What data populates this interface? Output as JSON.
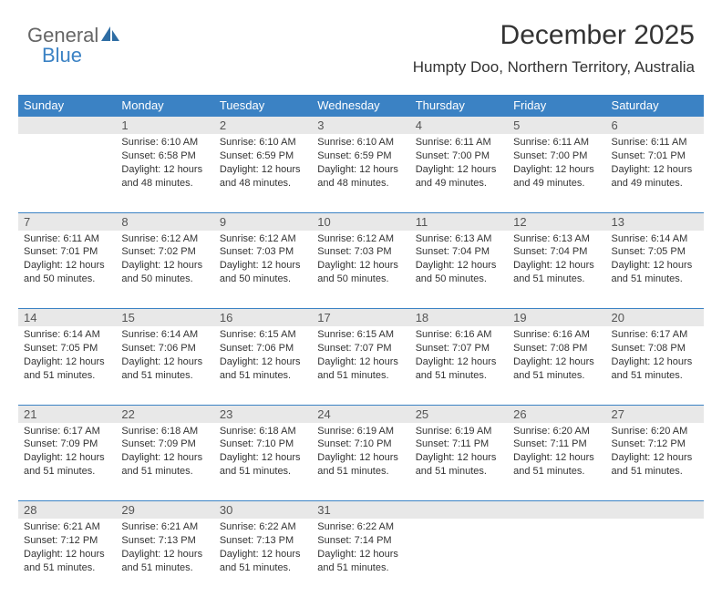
{
  "logo": {
    "text1": "General",
    "text2": "Blue",
    "icon_color": "#2e6da4"
  },
  "header": {
    "title": "December 2025",
    "location": "Humpty Doo, Northern Territory, Australia"
  },
  "colors": {
    "header_bg": "#3b82c4",
    "header_text": "#ffffff",
    "daybar_bg": "#e8e8e8",
    "row_border": "#3b82c4",
    "body_text": "#333333"
  },
  "dayNames": [
    "Sunday",
    "Monday",
    "Tuesday",
    "Wednesday",
    "Thursday",
    "Friday",
    "Saturday"
  ],
  "weeks": [
    [
      null,
      {
        "n": "1",
        "sr": "6:10 AM",
        "ss": "6:58 PM",
        "dl": "12 hours and 48 minutes."
      },
      {
        "n": "2",
        "sr": "6:10 AM",
        "ss": "6:59 PM",
        "dl": "12 hours and 48 minutes."
      },
      {
        "n": "3",
        "sr": "6:10 AM",
        "ss": "6:59 PM",
        "dl": "12 hours and 48 minutes."
      },
      {
        "n": "4",
        "sr": "6:11 AM",
        "ss": "7:00 PM",
        "dl": "12 hours and 49 minutes."
      },
      {
        "n": "5",
        "sr": "6:11 AM",
        "ss": "7:00 PM",
        "dl": "12 hours and 49 minutes."
      },
      {
        "n": "6",
        "sr": "6:11 AM",
        "ss": "7:01 PM",
        "dl": "12 hours and 49 minutes."
      }
    ],
    [
      {
        "n": "7",
        "sr": "6:11 AM",
        "ss": "7:01 PM",
        "dl": "12 hours and 50 minutes."
      },
      {
        "n": "8",
        "sr": "6:12 AM",
        "ss": "7:02 PM",
        "dl": "12 hours and 50 minutes."
      },
      {
        "n": "9",
        "sr": "6:12 AM",
        "ss": "7:03 PM",
        "dl": "12 hours and 50 minutes."
      },
      {
        "n": "10",
        "sr": "6:12 AM",
        "ss": "7:03 PM",
        "dl": "12 hours and 50 minutes."
      },
      {
        "n": "11",
        "sr": "6:13 AM",
        "ss": "7:04 PM",
        "dl": "12 hours and 50 minutes."
      },
      {
        "n": "12",
        "sr": "6:13 AM",
        "ss": "7:04 PM",
        "dl": "12 hours and 51 minutes."
      },
      {
        "n": "13",
        "sr": "6:14 AM",
        "ss": "7:05 PM",
        "dl": "12 hours and 51 minutes."
      }
    ],
    [
      {
        "n": "14",
        "sr": "6:14 AM",
        "ss": "7:05 PM",
        "dl": "12 hours and 51 minutes."
      },
      {
        "n": "15",
        "sr": "6:14 AM",
        "ss": "7:06 PM",
        "dl": "12 hours and 51 minutes."
      },
      {
        "n": "16",
        "sr": "6:15 AM",
        "ss": "7:06 PM",
        "dl": "12 hours and 51 minutes."
      },
      {
        "n": "17",
        "sr": "6:15 AM",
        "ss": "7:07 PM",
        "dl": "12 hours and 51 minutes."
      },
      {
        "n": "18",
        "sr": "6:16 AM",
        "ss": "7:07 PM",
        "dl": "12 hours and 51 minutes."
      },
      {
        "n": "19",
        "sr": "6:16 AM",
        "ss": "7:08 PM",
        "dl": "12 hours and 51 minutes."
      },
      {
        "n": "20",
        "sr": "6:17 AM",
        "ss": "7:08 PM",
        "dl": "12 hours and 51 minutes."
      }
    ],
    [
      {
        "n": "21",
        "sr": "6:17 AM",
        "ss": "7:09 PM",
        "dl": "12 hours and 51 minutes."
      },
      {
        "n": "22",
        "sr": "6:18 AM",
        "ss": "7:09 PM",
        "dl": "12 hours and 51 minutes."
      },
      {
        "n": "23",
        "sr": "6:18 AM",
        "ss": "7:10 PM",
        "dl": "12 hours and 51 minutes."
      },
      {
        "n": "24",
        "sr": "6:19 AM",
        "ss": "7:10 PM",
        "dl": "12 hours and 51 minutes."
      },
      {
        "n": "25",
        "sr": "6:19 AM",
        "ss": "7:11 PM",
        "dl": "12 hours and 51 minutes."
      },
      {
        "n": "26",
        "sr": "6:20 AM",
        "ss": "7:11 PM",
        "dl": "12 hours and 51 minutes."
      },
      {
        "n": "27",
        "sr": "6:20 AM",
        "ss": "7:12 PM",
        "dl": "12 hours and 51 minutes."
      }
    ],
    [
      {
        "n": "28",
        "sr": "6:21 AM",
        "ss": "7:12 PM",
        "dl": "12 hours and 51 minutes."
      },
      {
        "n": "29",
        "sr": "6:21 AM",
        "ss": "7:13 PM",
        "dl": "12 hours and 51 minutes."
      },
      {
        "n": "30",
        "sr": "6:22 AM",
        "ss": "7:13 PM",
        "dl": "12 hours and 51 minutes."
      },
      {
        "n": "31",
        "sr": "6:22 AM",
        "ss": "7:14 PM",
        "dl": "12 hours and 51 minutes."
      },
      null,
      null,
      null
    ]
  ],
  "labels": {
    "sunrise": "Sunrise:",
    "sunset": "Sunset:",
    "daylight": "Daylight:"
  }
}
